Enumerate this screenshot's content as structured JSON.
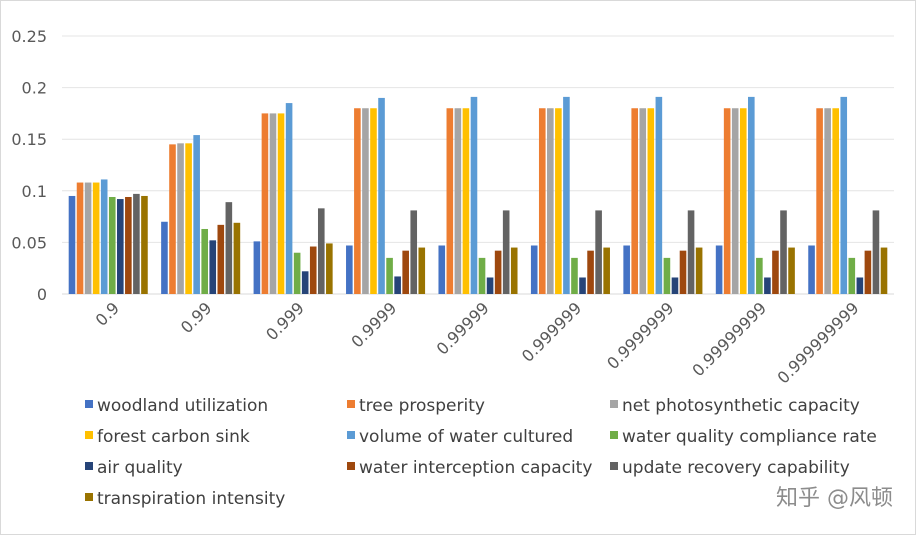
{
  "chart_data": {
    "type": "bar",
    "title": "",
    "xlabel": "",
    "ylabel": "",
    "ylim": [
      0,
      0.25
    ],
    "yticks": [
      "0",
      "0.05",
      "0.1",
      "0.15",
      "0.2",
      "0.25"
    ],
    "grid": true,
    "legend_position": "bottom",
    "categories": [
      "0.9",
      "0.99",
      "0.999",
      "0.9999",
      "0.99999",
      "0.999999",
      "0.9999999",
      "0.99999999",
      "0.999999999"
    ],
    "series": [
      {
        "name": "woodland utilization",
        "color": "#4472c4",
        "values": [
          0.095,
          0.07,
          0.051,
          0.047,
          0.047,
          0.047,
          0.047,
          0.047,
          0.047
        ]
      },
      {
        "name": "tree prosperity",
        "color": "#ed7d31",
        "values": [
          0.108,
          0.145,
          0.175,
          0.18,
          0.18,
          0.18,
          0.18,
          0.18,
          0.18
        ]
      },
      {
        "name": "net photosynthetic capacity",
        "color": "#a5a5a5",
        "values": [
          0.108,
          0.146,
          0.175,
          0.18,
          0.18,
          0.18,
          0.18,
          0.18,
          0.18
        ]
      },
      {
        "name": "forest carbon sink",
        "color": "#ffc000",
        "values": [
          0.108,
          0.146,
          0.175,
          0.18,
          0.18,
          0.18,
          0.18,
          0.18,
          0.18
        ]
      },
      {
        "name": "volume of water cultured",
        "color": "#5b9bd5",
        "values": [
          0.111,
          0.154,
          0.185,
          0.19,
          0.191,
          0.191,
          0.191,
          0.191,
          0.191
        ]
      },
      {
        "name": "water quality compliance rate",
        "color": "#70ad47",
        "values": [
          0.094,
          0.063,
          0.04,
          0.035,
          0.035,
          0.035,
          0.035,
          0.035,
          0.035
        ]
      },
      {
        "name": "air quality",
        "color": "#264478",
        "values": [
          0.092,
          0.052,
          0.022,
          0.017,
          0.016,
          0.016,
          0.016,
          0.016,
          0.016
        ]
      },
      {
        "name": "water interception capacity",
        "color": "#9e480e",
        "values": [
          0.094,
          0.067,
          0.046,
          0.042,
          0.042,
          0.042,
          0.042,
          0.042,
          0.042
        ]
      },
      {
        "name": "update recovery capability",
        "color": "#636363",
        "values": [
          0.097,
          0.089,
          0.083,
          0.081,
          0.081,
          0.081,
          0.081,
          0.081,
          0.081
        ]
      },
      {
        "name": "transpiration intensity",
        "color": "#997300",
        "values": [
          0.095,
          0.069,
          0.049,
          0.045,
          0.045,
          0.045,
          0.045,
          0.045,
          0.045
        ]
      }
    ]
  },
  "watermark": "知乎 @风顿"
}
